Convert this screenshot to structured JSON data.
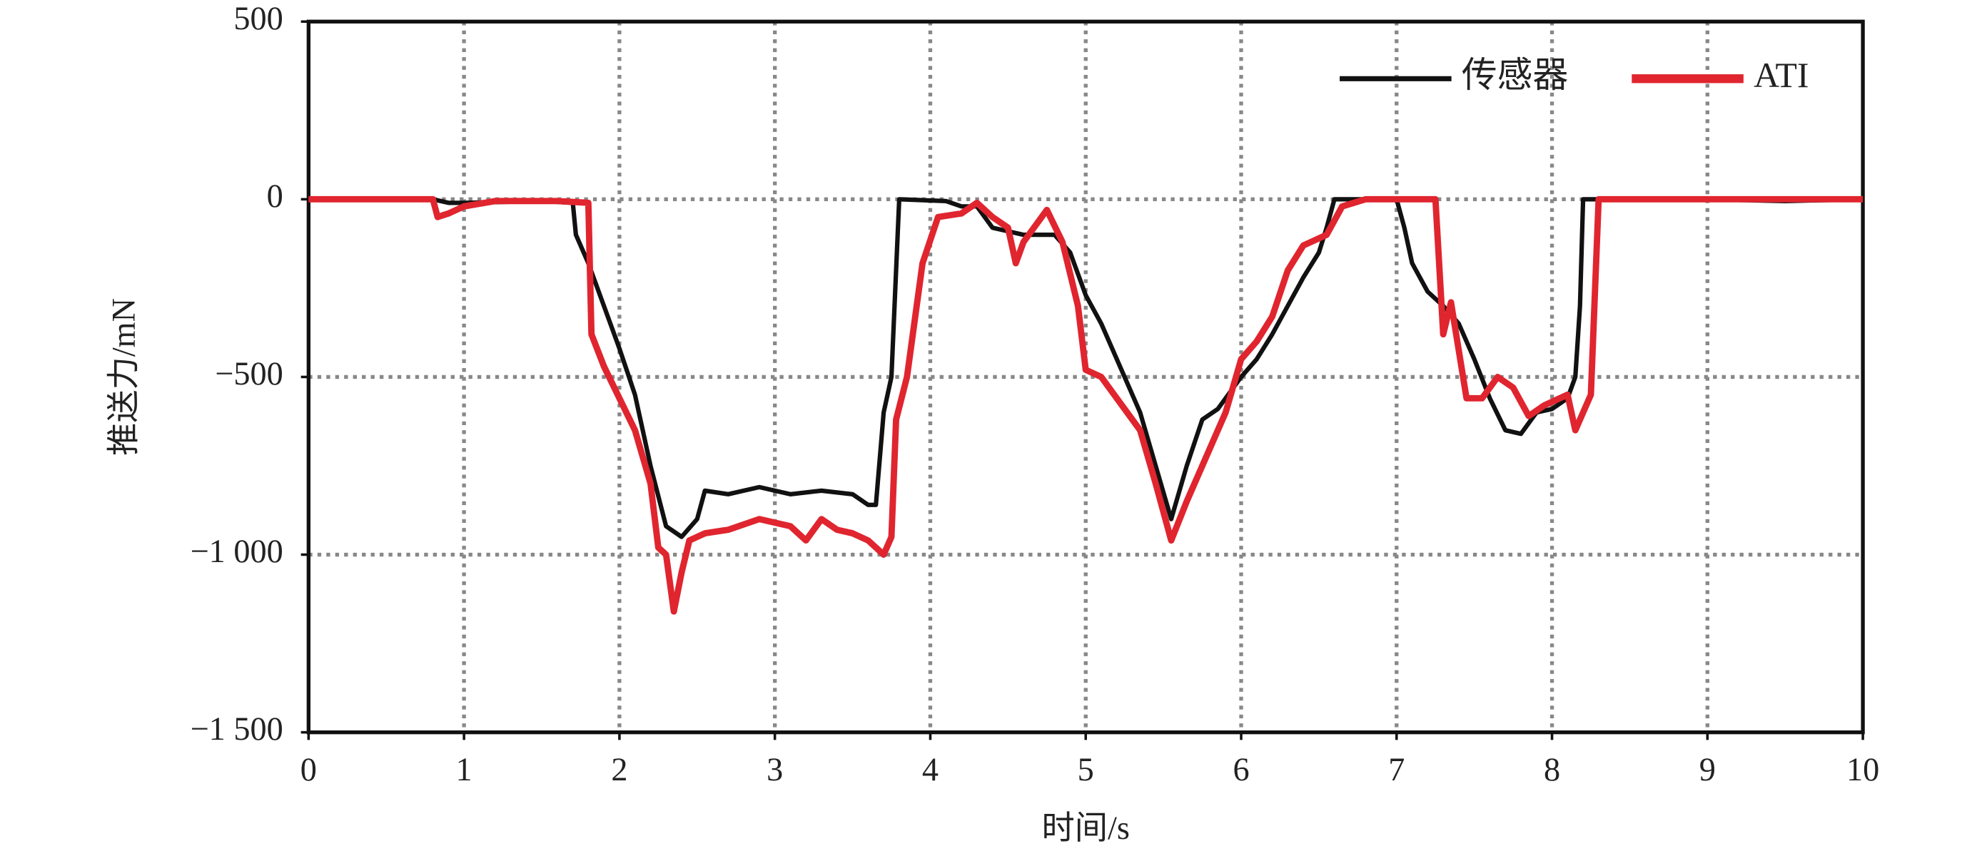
{
  "chart_data": {
    "type": "line",
    "xlabel": "时间/s",
    "ylabel": "推送力/mN",
    "xlim": [
      0,
      10
    ],
    "ylim": [
      -1500,
      500
    ],
    "xticks": [
      0,
      1,
      2,
      3,
      4,
      5,
      6,
      7,
      8,
      9,
      10
    ],
    "yticks": [
      500,
      0,
      {
        "value": -500,
        "label": "−500"
      },
      {
        "value": -1000,
        "label": "−1 000"
      },
      {
        "value": -1500,
        "label": "−1 500"
      }
    ],
    "grid": true,
    "legend": "upper right",
    "series": [
      {
        "name": "传感器",
        "color": "#111111",
        "x": [
          0,
          0.8,
          0.85,
          0.9,
          1.0,
          1.5,
          1.7,
          1.72,
          1.8,
          1.9,
          2.0,
          2.1,
          2.2,
          2.3,
          2.4,
          2.5,
          2.55,
          2.7,
          2.9,
          3.1,
          3.3,
          3.5,
          3.6,
          3.65,
          3.7,
          3.75,
          3.8,
          4.1,
          4.2,
          4.3,
          4.4,
          4.6,
          4.8,
          4.9,
          5.0,
          5.1,
          5.2,
          5.35,
          5.45,
          5.55,
          5.65,
          5.75,
          5.85,
          6.0,
          6.1,
          6.2,
          6.3,
          6.4,
          6.5,
          6.55,
          6.6,
          7.0,
          7.05,
          7.1,
          7.2,
          7.3,
          7.4,
          7.5,
          7.6,
          7.7,
          7.8,
          7.9,
          8.0,
          8.1,
          8.15,
          8.18,
          8.2,
          9.0,
          9.5,
          10
        ],
        "values": [
          0,
          0,
          -5,
          -10,
          -10,
          -5,
          -10,
          -100,
          -180,
          -300,
          -420,
          -550,
          -750,
          -920,
          -950,
          -900,
          -820,
          -830,
          -810,
          -830,
          -820,
          -830,
          -860,
          -860,
          -600,
          -500,
          0,
          -5,
          -20,
          -20,
          -80,
          -100,
          -100,
          -150,
          -270,
          -350,
          -450,
          -600,
          -750,
          -900,
          -750,
          -620,
          -590,
          -500,
          -450,
          -380,
          -300,
          -220,
          -150,
          -80,
          0,
          0,
          -80,
          -180,
          -260,
          -300,
          -350,
          -450,
          -560,
          -650,
          -660,
          -600,
          -590,
          -560,
          -500,
          -300,
          0,
          0,
          -5,
          0
        ]
      },
      {
        "name": "ATI",
        "color": "#e0252f",
        "x": [
          0,
          0.8,
          0.83,
          0.9,
          1.0,
          1.2,
          1.4,
          1.6,
          1.8,
          1.82,
          1.9,
          2.0,
          2.1,
          2.2,
          2.25,
          2.3,
          2.35,
          2.4,
          2.45,
          2.55,
          2.7,
          2.9,
          3.1,
          3.2,
          3.3,
          3.4,
          3.5,
          3.6,
          3.7,
          3.75,
          3.78,
          3.85,
          3.95,
          4.05,
          4.2,
          4.3,
          4.4,
          4.5,
          4.55,
          4.6,
          4.7,
          4.75,
          4.85,
          4.95,
          5.0,
          5.1,
          5.2,
          5.35,
          5.45,
          5.55,
          5.65,
          5.8,
          5.9,
          6.0,
          6.1,
          6.2,
          6.3,
          6.4,
          6.55,
          6.65,
          6.8,
          7.25,
          7.3,
          7.35,
          7.45,
          7.55,
          7.65,
          7.75,
          7.85,
          7.95,
          8.1,
          8.15,
          8.25,
          8.3,
          9,
          10
        ],
        "values": [
          0,
          0,
          -50,
          -40,
          -20,
          -5,
          -5,
          -5,
          -10,
          -380,
          -470,
          -560,
          -650,
          -800,
          -980,
          -1000,
          -1160,
          -1050,
          -960,
          -940,
          -930,
          -900,
          -920,
          -960,
          -900,
          -930,
          -940,
          -960,
          -1000,
          -950,
          -620,
          -500,
          -180,
          -50,
          -40,
          -10,
          -50,
          -80,
          -180,
          -120,
          -60,
          -30,
          -120,
          -300,
          -480,
          -500,
          -560,
          -650,
          -800,
          -960,
          -850,
          -700,
          -600,
          -450,
          -400,
          -330,
          -200,
          -130,
          -100,
          -20,
          0,
          0,
          -380,
          -290,
          -560,
          -560,
          -500,
          -530,
          -610,
          -580,
          -550,
          -650,
          -550,
          0,
          0,
          0
        ]
      }
    ]
  }
}
